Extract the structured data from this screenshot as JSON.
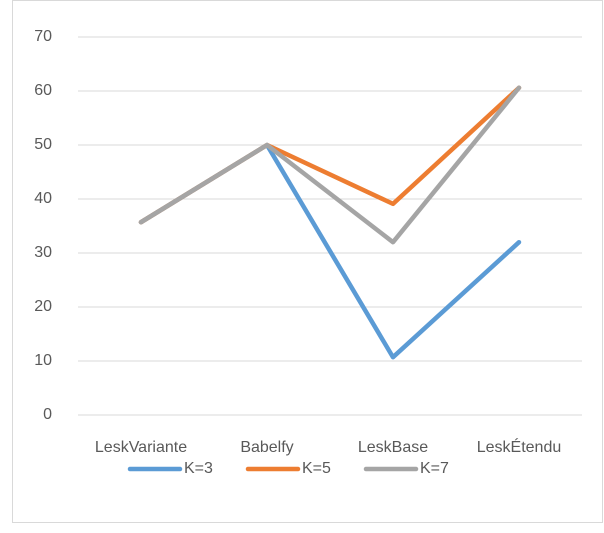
{
  "chart_data": {
    "type": "line",
    "categories": [
      "LeskVariante",
      "Babelfy",
      "LeskBase",
      "LeskÉtendu"
    ],
    "series": [
      {
        "name": "K=3",
        "color": "#5b9bd5",
        "values": [
          35.7,
          50,
          10.7,
          32
        ]
      },
      {
        "name": "K=5",
        "color": "#ed7d31",
        "values": [
          35.7,
          50,
          39.1,
          60.6
        ]
      },
      {
        "name": "K=7",
        "color": "#a5a5a5",
        "values": [
          35.7,
          50,
          32,
          60.6
        ]
      }
    ],
    "ylim": [
      0,
      70
    ],
    "yticks": [
      0,
      10,
      20,
      30,
      40,
      50,
      60,
      70
    ],
    "grid": true,
    "legend": "bottom"
  }
}
